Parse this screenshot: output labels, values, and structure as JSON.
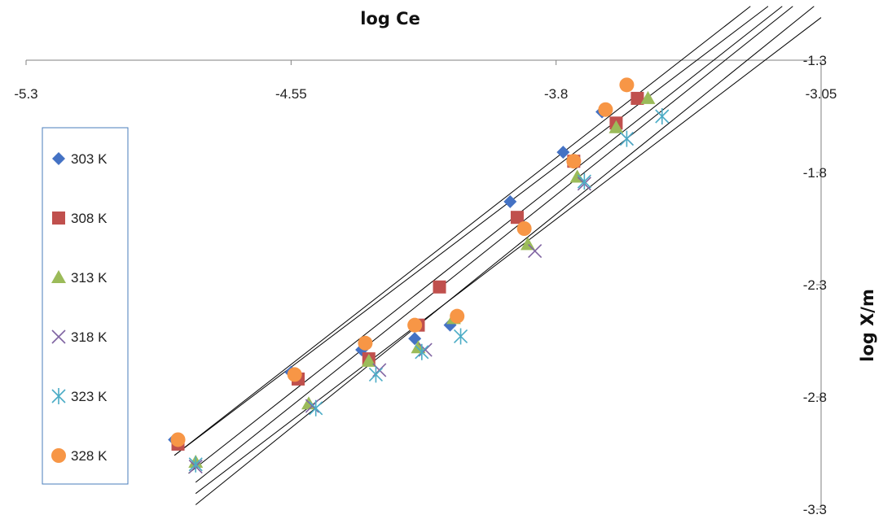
{
  "chart_data": {
    "type": "scatter",
    "title": "",
    "xlabel": "log Ce",
    "ylabel": "log X/m",
    "xlim": [
      -5.3,
      -3.05
    ],
    "ylim": [
      -3.3,
      -1.3
    ],
    "x_axis_position": "top",
    "y_axis_position": "right",
    "x_ticks": [
      -5.3,
      -4.55,
      -3.8,
      -3.05
    ],
    "y_ticks": [
      -1.3,
      -1.8,
      -2.3,
      -2.8,
      -3.3
    ],
    "x_tick_labels": [
      "-5.3",
      "-4.55",
      "-3.8",
      "-3.05"
    ],
    "y_tick_labels": [
      "-1.3",
      "-1.8",
      "-2.3",
      "-2.8",
      "-3.3"
    ],
    "grid": false,
    "legend_position": "left",
    "series": [
      {
        "name": "303 K",
        "marker": "diamond",
        "color": "#4472c4",
        "points": [
          [
            -4.88,
            -2.99
          ],
          [
            -4.55,
            -2.69
          ],
          [
            -4.35,
            -2.59
          ],
          [
            -4.2,
            -2.54
          ],
          [
            -4.1,
            -2.48
          ],
          [
            -3.93,
            -1.93
          ],
          [
            -3.78,
            -1.71
          ],
          [
            -3.67,
            -1.53
          ]
        ],
        "fit": [
          [
            -4.88,
            -3.06
          ],
          [
            -3.25,
            -1.06
          ]
        ]
      },
      {
        "name": "308 K",
        "marker": "square",
        "color": "#c0504d",
        "points": [
          [
            -4.87,
            -3.01
          ],
          [
            -4.53,
            -2.72
          ],
          [
            -4.33,
            -2.63
          ],
          [
            -4.19,
            -2.48
          ],
          [
            -4.13,
            -2.31
          ],
          [
            -3.91,
            -2.0
          ],
          [
            -3.75,
            -1.75
          ],
          [
            -3.63,
            -1.58
          ],
          [
            -3.57,
            -1.47
          ]
        ],
        "fit": [
          [
            -4.88,
            -3.06
          ],
          [
            -3.2,
            -1.06
          ]
        ]
      },
      {
        "name": "313 K",
        "marker": "triangle",
        "color": "#9bbb59",
        "points": [
          [
            -4.82,
            -3.09
          ],
          [
            -4.5,
            -2.83
          ],
          [
            -4.33,
            -2.64
          ],
          [
            -4.19,
            -2.58
          ],
          [
            -4.09,
            -2.45
          ],
          [
            -3.88,
            -2.12
          ],
          [
            -3.74,
            -1.82
          ],
          [
            -3.63,
            -1.6
          ],
          [
            -3.54,
            -1.47
          ]
        ],
        "fit": [
          [
            -4.84,
            -3.14
          ],
          [
            -3.16,
            -1.06
          ]
        ]
      },
      {
        "name": "318 K",
        "marker": "x",
        "color": "#8064a2",
        "points": [
          [
            -4.82,
            -3.11
          ],
          [
            -4.49,
            -2.84
          ],
          [
            -4.3,
            -2.68
          ],
          [
            -4.17,
            -2.59
          ],
          [
            -3.86,
            -2.15
          ],
          [
            -3.72,
            -1.85
          ],
          [
            -3.6,
            -1.65
          ]
        ],
        "fit": [
          [
            -4.82,
            -3.18
          ],
          [
            -3.13,
            -1.06
          ]
        ]
      },
      {
        "name": "323 K",
        "marker": "star",
        "color": "#4bacc6",
        "points": [
          [
            -4.82,
            -3.1
          ],
          [
            -4.48,
            -2.85
          ],
          [
            -4.31,
            -2.7
          ],
          [
            -4.18,
            -2.6
          ],
          [
            -4.07,
            -2.53
          ],
          [
            -3.72,
            -1.84
          ],
          [
            -3.6,
            -1.65
          ],
          [
            -3.5,
            -1.55
          ]
        ],
        "fit": [
          [
            -4.82,
            -3.23
          ],
          [
            -3.05,
            -1.11
          ]
        ]
      },
      {
        "name": "328 K",
        "marker": "circle",
        "color": "#f79646",
        "points": [
          [
            -4.87,
            -2.99
          ],
          [
            -4.54,
            -2.7
          ],
          [
            -4.34,
            -2.56
          ],
          [
            -4.2,
            -2.48
          ],
          [
            -4.08,
            -2.44
          ],
          [
            -3.89,
            -2.05
          ],
          [
            -3.75,
            -1.75
          ],
          [
            -3.66,
            -1.52
          ],
          [
            -3.6,
            -1.41
          ]
        ],
        "fit": [
          [
            -4.82,
            -3.28
          ],
          [
            -3.07,
            -1.06
          ]
        ]
      }
    ]
  }
}
